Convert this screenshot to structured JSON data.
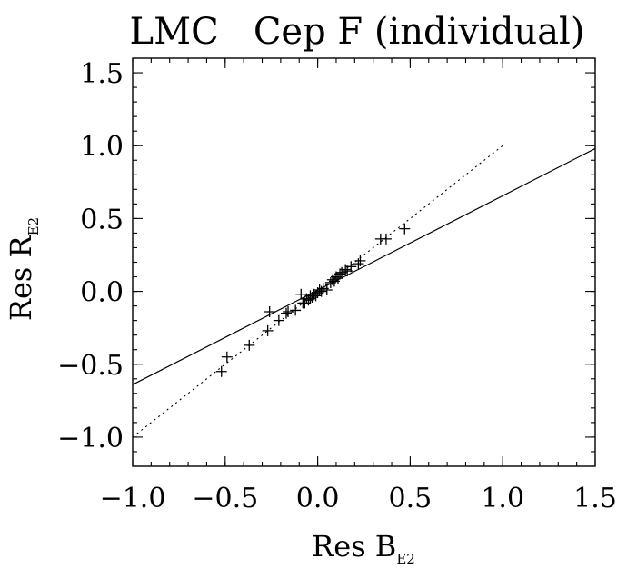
{
  "chart_data": {
    "type": "scatter",
    "title": "LMC   Cep F (individual)",
    "xlabel": {
      "main": "Res B",
      "sub": "E2"
    },
    "ylabel": {
      "main": "Res R",
      "sub": "E2"
    },
    "xlim": [
      -1.0,
      1.5
    ],
    "ylim": [
      -1.2,
      1.6
    ],
    "x_ticks": [
      -1.0,
      -0.5,
      0.0,
      0.5,
      1.0,
      1.5
    ],
    "x_tick_labels": [
      "−1.0",
      "−0.5",
      "0.0",
      "0.5",
      "1.0",
      "1.5"
    ],
    "y_ticks": [
      -1.0,
      -0.5,
      0.0,
      0.5,
      1.0,
      1.5
    ],
    "y_tick_labels": [
      "−1.0",
      "−0.5",
      "0.0",
      "0.5",
      "1.0",
      "1.5"
    ],
    "grid": false,
    "marker": "plus",
    "points": [
      {
        "x": -0.52,
        "y": -0.55
      },
      {
        "x": -0.49,
        "y": -0.45
      },
      {
        "x": -0.37,
        "y": -0.37
      },
      {
        "x": -0.27,
        "y": -0.27
      },
      {
        "x": -0.26,
        "y": -0.14
      },
      {
        "x": -0.21,
        "y": -0.2
      },
      {
        "x": -0.17,
        "y": -0.15
      },
      {
        "x": -0.16,
        "y": -0.14
      },
      {
        "x": -0.12,
        "y": -0.13
      },
      {
        "x": -0.09,
        "y": -0.02
      },
      {
        "x": -0.08,
        "y": -0.08
      },
      {
        "x": -0.07,
        "y": -0.08
      },
      {
        "x": -0.06,
        "y": -0.05
      },
      {
        "x": -0.05,
        "y": -0.06
      },
      {
        "x": -0.04,
        "y": -0.03
      },
      {
        "x": -0.04,
        "y": -0.05
      },
      {
        "x": -0.03,
        "y": -0.04
      },
      {
        "x": -0.02,
        "y": -0.02
      },
      {
        "x": -0.01,
        "y": -0.03
      },
      {
        "x": 0.0,
        "y": -0.01
      },
      {
        "x": 0.01,
        "y": 0.01
      },
      {
        "x": 0.02,
        "y": 0.0
      },
      {
        "x": 0.03,
        "y": 0.02
      },
      {
        "x": 0.05,
        "y": 0.01
      },
      {
        "x": 0.07,
        "y": 0.06
      },
      {
        "x": 0.08,
        "y": 0.08
      },
      {
        "x": 0.09,
        "y": 0.07
      },
      {
        "x": 0.1,
        "y": 0.1
      },
      {
        "x": 0.11,
        "y": 0.09
      },
      {
        "x": 0.12,
        "y": 0.12
      },
      {
        "x": 0.13,
        "y": 0.13
      },
      {
        "x": 0.15,
        "y": 0.15
      },
      {
        "x": 0.16,
        "y": 0.14
      },
      {
        "x": 0.18,
        "y": 0.17
      },
      {
        "x": 0.22,
        "y": 0.19
      },
      {
        "x": 0.23,
        "y": 0.21
      },
      {
        "x": 0.34,
        "y": 0.36
      },
      {
        "x": 0.37,
        "y": 0.36
      },
      {
        "x": 0.47,
        "y": 0.43
      }
    ],
    "lines": [
      {
        "style": "solid",
        "x": [
          -1.0,
          1.5
        ],
        "y": [
          -0.64,
          0.98
        ]
      },
      {
        "style": "dotted",
        "x": [
          -1.0,
          1.0
        ],
        "y": [
          -1.0,
          1.0
        ]
      }
    ]
  }
}
